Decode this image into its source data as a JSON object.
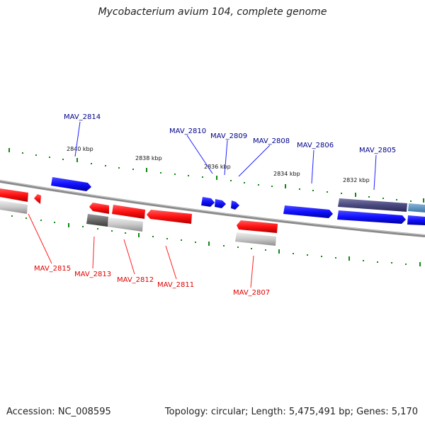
{
  "title": "Mycobacterium avium 104, complete genome",
  "footer": {
    "accession": "Accession: NC_008595",
    "summary": "Topology: circular; Length: 5,475,491 bp; Genes: 5,170"
  },
  "colors": {
    "forward_gene": "#1a1aff",
    "reverse_gene": "#ff1a1a",
    "forward_label": "#00008b",
    "reverse_label": "#e00000",
    "pseudo_gene": "#505085",
    "tick": "#118811",
    "backbone": "#8a8a8a"
  },
  "scale_ticks": [
    "2840 kbp",
    "2838 kbp",
    "2836 kbp",
    "2834 kbp",
    "2832 kbp"
  ],
  "gene_labels": {
    "forward": [
      "MAV_2814",
      "MAV_2810",
      "MAV_2809",
      "MAV_2808",
      "MAV_2806",
      "MAV_2805"
    ],
    "reverse": [
      "MAV_2815",
      "MAV_2813",
      "MAV_2812",
      "MAV_2811",
      "MAV_2807"
    ]
  }
}
